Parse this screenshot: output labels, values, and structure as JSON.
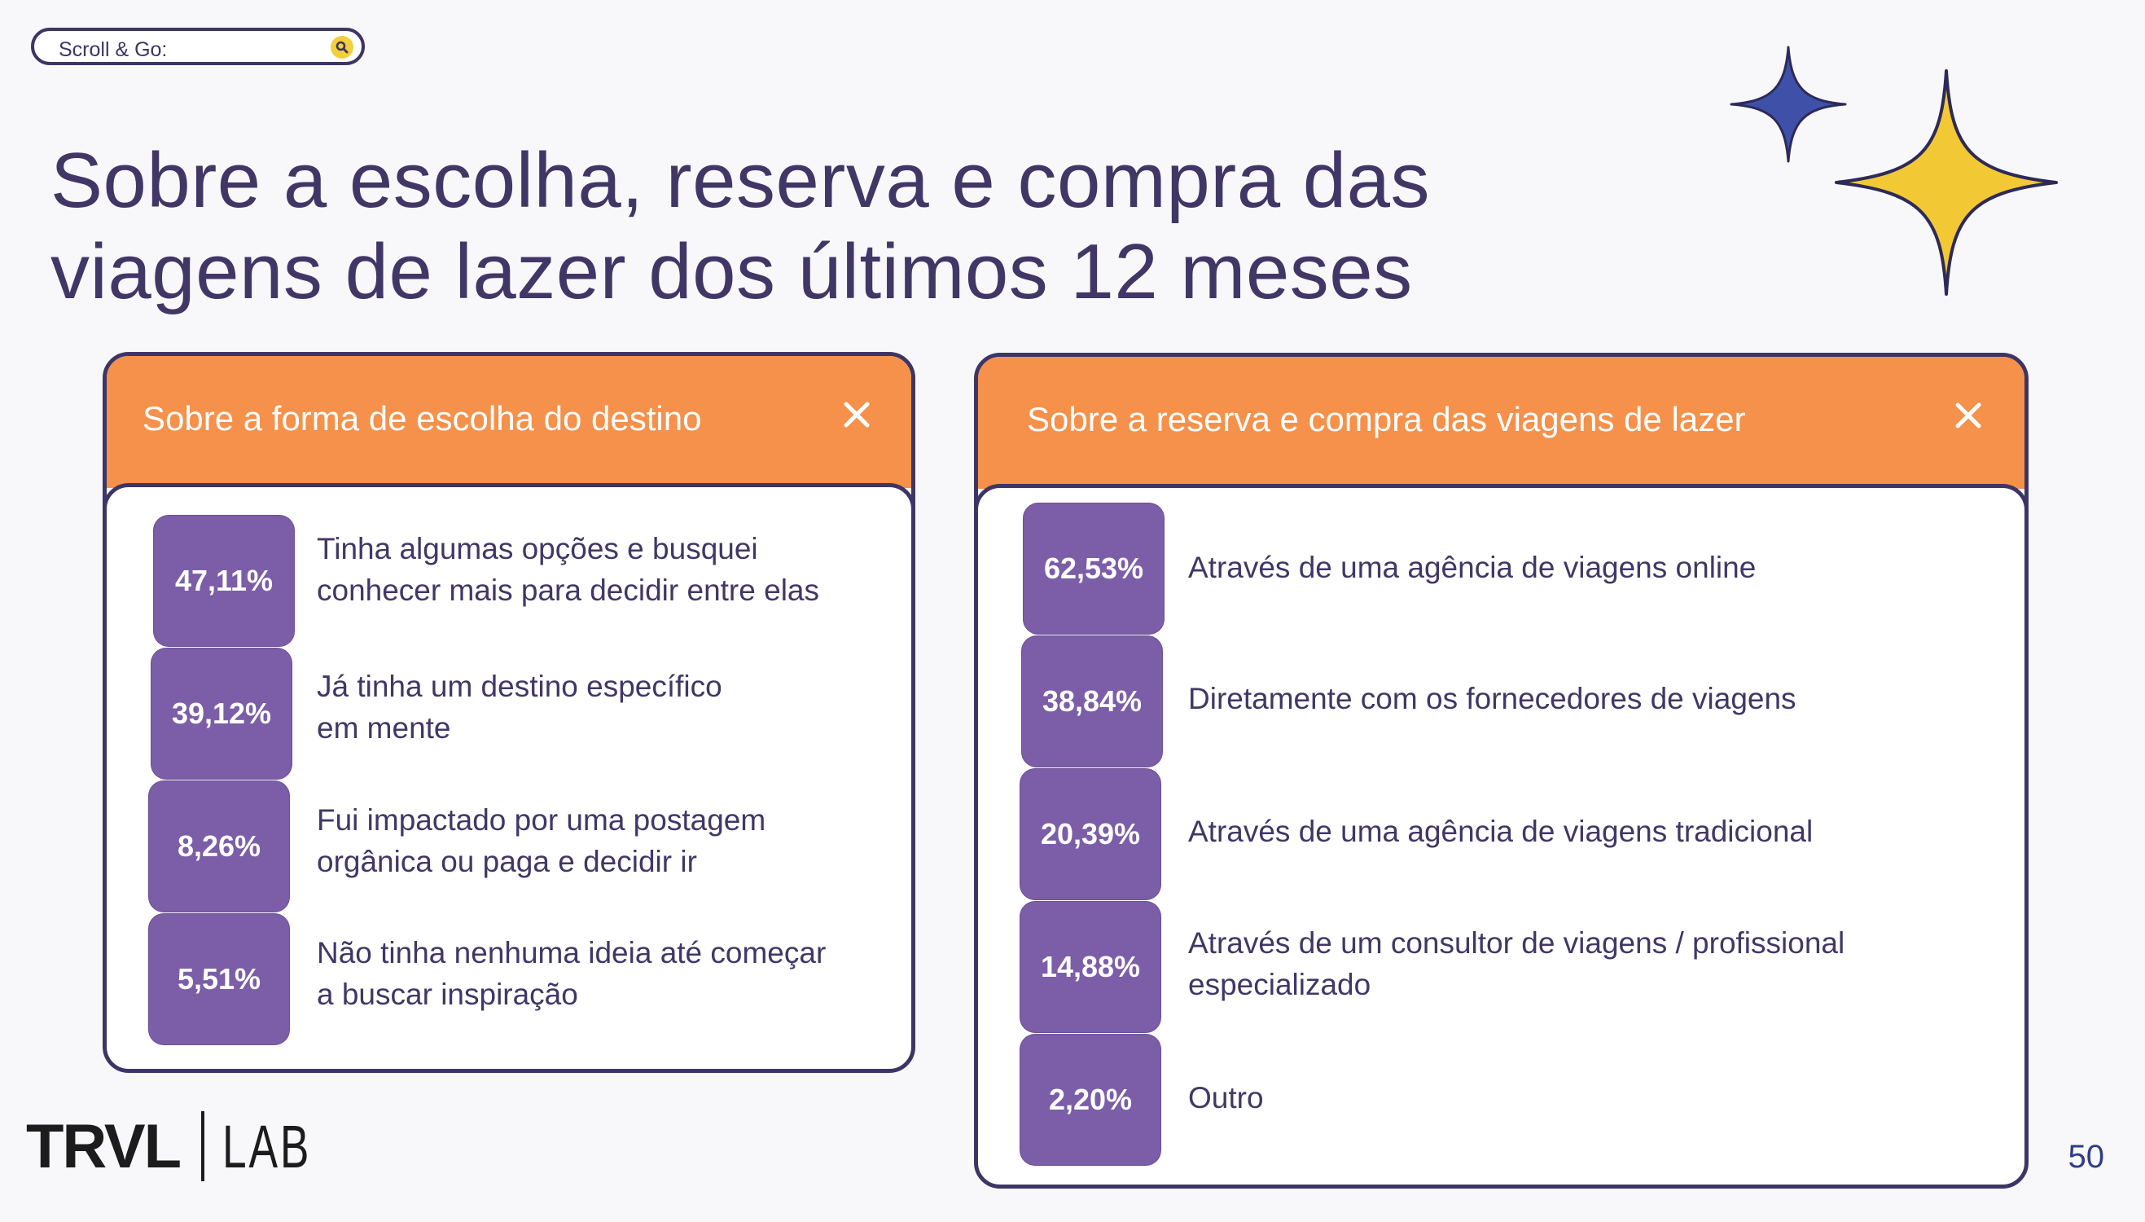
{
  "search": {
    "label": "Scroll & Go:",
    "icon": "search-icon"
  },
  "title": {
    "line1": "Sobre a escolha, reserva e compra das",
    "line2": "viagens de lazer dos últimos 12 meses"
  },
  "colors": {
    "primary": "#413766",
    "header_orange": "#f5914a",
    "badge_purple": "#7b5ea7",
    "sparkle_blue": "#3f50a8",
    "sparkle_yellow": "#f2c935"
  },
  "left_card": {
    "title": "Sobre a forma de escolha do destino",
    "close_icon": "close-icon",
    "items": [
      {
        "pct": "47,11%",
        "line1": "Tinha algumas opções e busquei",
        "line2": "conhecer mais para decidir entre elas"
      },
      {
        "pct": "39,12%",
        "line1": "Já tinha um destino específico",
        "line2": "em mente"
      },
      {
        "pct": "8,26%",
        "line1": "Fui impactado por uma postagem",
        "line2": "orgânica ou paga e decidir ir"
      },
      {
        "pct": "5,51%",
        "line1": "Não tinha nenhuma ideia até começar",
        "line2": "a buscar inspiração"
      }
    ]
  },
  "right_card": {
    "title": "Sobre a reserva e compra das viagens de lazer",
    "close_icon": "close-icon",
    "items": [
      {
        "pct": "62,53%",
        "line1": "Através de uma agência de viagens online",
        "line2": ""
      },
      {
        "pct": "38,84%",
        "line1": "Diretamente com os fornecedores de viagens",
        "line2": ""
      },
      {
        "pct": "20,39%",
        "line1": "Através de uma agência de viagens tradicional",
        "line2": ""
      },
      {
        "pct": "14,88%",
        "line1": "Através de um consultor de viagens / profissional",
        "line2": "especializado"
      },
      {
        "pct": "2,20%",
        "line1": "Outro",
        "line2": ""
      }
    ]
  },
  "logo": {
    "brand": "TRVL",
    "sub": "LAB"
  },
  "page_number": "50"
}
